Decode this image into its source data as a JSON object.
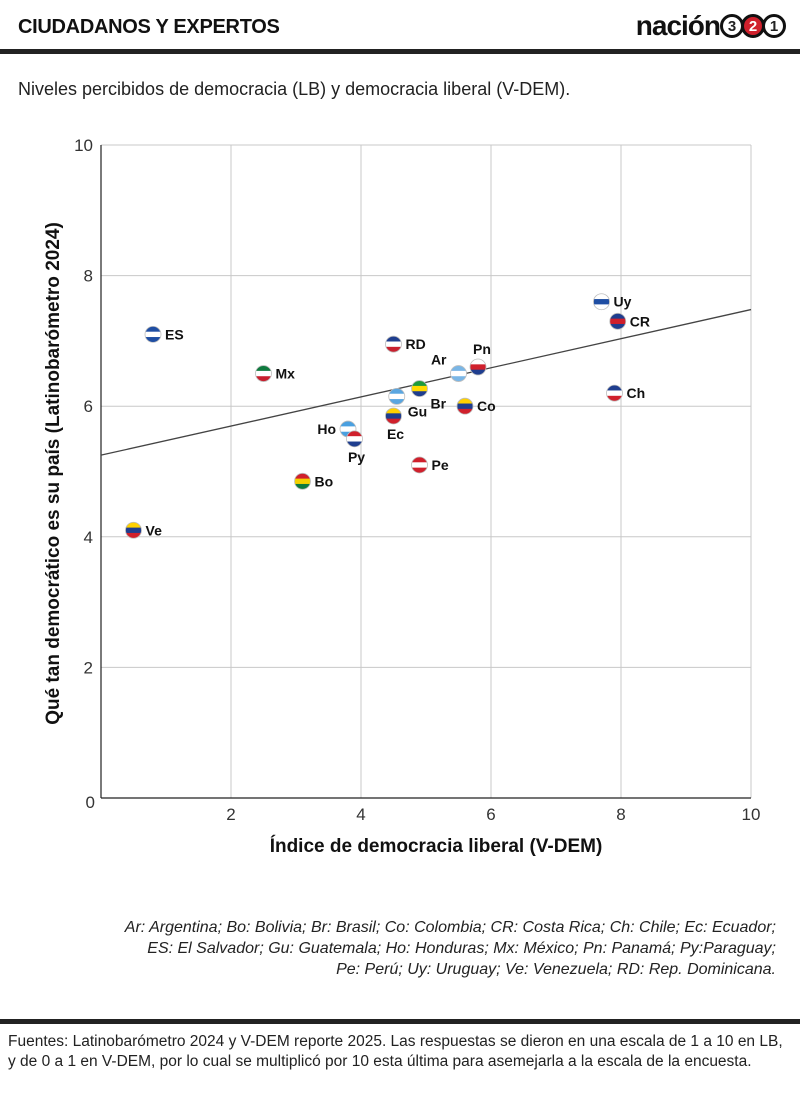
{
  "header": {
    "section_label": "CIUDADANOS Y EXPERTOS",
    "brand_word": "nación",
    "brand_digits": [
      "3",
      "2",
      "1"
    ]
  },
  "subtitle": "Niveles percibidos de democracia (LB) y democracia liberal (V-DEM).",
  "chart_data": {
    "type": "scatter",
    "xlabel": "Índice de democracia liberal (V-DEM)",
    "ylabel": "Qué tan democrático es su país (Latinobarómetro 2024)",
    "xlim": [
      0,
      10
    ],
    "ylim": [
      0,
      10
    ],
    "xticks": [
      "2",
      "4",
      "6",
      "8",
      "10"
    ],
    "yticks": [
      "0",
      "2",
      "4",
      "6",
      "8",
      "10"
    ],
    "grid": true,
    "trendline": {
      "x": [
        0,
        10
      ],
      "y": [
        5.25,
        7.48
      ]
    },
    "points": [
      {
        "label": "ES",
        "x": 0.8,
        "y": 7.1,
        "label_pos": "right",
        "flag": [
          "#1f4ea3",
          "#ffffff",
          "#1f4ea3"
        ]
      },
      {
        "label": "Mx",
        "x": 2.5,
        "y": 6.5,
        "label_pos": "right",
        "flag": [
          "#0e7a3e",
          "#ffffff",
          "#c8202f"
        ]
      },
      {
        "label": "RD",
        "x": 4.5,
        "y": 6.95,
        "label_pos": "right",
        "flag": [
          "#1f3e8f",
          "#ffffff",
          "#c8202f"
        ]
      },
      {
        "label": "Ar",
        "x": 5.5,
        "y": 6.5,
        "label_pos": "above-left",
        "flag": [
          "#7ab6e6",
          "#ffffff",
          "#7ab6e6"
        ]
      },
      {
        "label": "Pn",
        "x": 5.8,
        "y": 6.6,
        "label_pos": "above",
        "flag": [
          "#ffffff",
          "#d0202c",
          "#1f3e8f"
        ]
      },
      {
        "label": "Gu",
        "x": 4.55,
        "y": 6.15,
        "label_pos": "below-right",
        "flag": [
          "#5aa6e0",
          "#ffffff",
          "#5aa6e0"
        ]
      },
      {
        "label": "Br",
        "x": 4.9,
        "y": 6.27,
        "label_pos": "below-right",
        "flag": [
          "#1e9a3a",
          "#ffd900",
          "#1f3e8f"
        ]
      },
      {
        "label": "Ec",
        "x": 4.5,
        "y": 5.85,
        "label_pos": "below",
        "flag": [
          "#ffd100",
          "#1f3e8f",
          "#d0202c"
        ]
      },
      {
        "label": "Co",
        "x": 5.6,
        "y": 6.0,
        "label_pos": "right",
        "flag": [
          "#ffd100",
          "#1f3e8f",
          "#d0202c"
        ]
      },
      {
        "label": "Ho",
        "x": 3.8,
        "y": 5.65,
        "label_pos": "left",
        "flag": [
          "#4aa0e0",
          "#ffffff",
          "#4aa0e0"
        ]
      },
      {
        "label": "Py",
        "x": 3.9,
        "y": 5.5,
        "label_pos": "below",
        "flag": [
          "#d0202c",
          "#ffffff",
          "#1f3e8f"
        ]
      },
      {
        "label": "Pe",
        "x": 4.9,
        "y": 5.1,
        "label_pos": "right",
        "flag": [
          "#d0202c",
          "#ffffff",
          "#d0202c"
        ]
      },
      {
        "label": "Bo",
        "x": 3.1,
        "y": 4.85,
        "label_pos": "right",
        "flag": [
          "#d0202c",
          "#f4d000",
          "#0e7a3e"
        ]
      },
      {
        "label": "Ve",
        "x": 0.5,
        "y": 4.1,
        "label_pos": "right",
        "flag": [
          "#ffd100",
          "#1f3e8f",
          "#d0202c"
        ]
      },
      {
        "label": "Uy",
        "x": 7.7,
        "y": 7.6,
        "label_pos": "right",
        "flag": [
          "#ffffff",
          "#1f4ea3",
          "#ffffff"
        ]
      },
      {
        "label": "CR",
        "x": 7.95,
        "y": 7.3,
        "label_pos": "right",
        "flag": [
          "#1f3e8f",
          "#d0202c",
          "#1f3e8f"
        ]
      },
      {
        "label": "Ch",
        "x": 7.9,
        "y": 6.2,
        "label_pos": "right",
        "flag": [
          "#1f3e8f",
          "#ffffff",
          "#d0202c"
        ]
      }
    ]
  },
  "legend_note": [
    "Ar: Argentina; Bo: Bolivia; Br: Brasil; Co: Colombia; CR: Costa Rica; Ch: Chile; Ec: Ecuador;",
    "ES: El Salvador; Gu: Guatemala; Ho: Honduras; Mx: México; Pn: Panamá; Py:Paraguay;",
    "Pe: Perú; Uy: Uruguay; Ve: Venezuela; RD: Rep. Dominicana."
  ],
  "source": "Fuentes: Latinobarómetro 2024 y V-DEM reporte 2025. Las respuestas se dieron en una escala de 1 a 10 en LB, y de 0 a 1 en V-DEM, por lo cual se multiplicó por 10 esta última para asemejarla a la escala de la encuesta."
}
